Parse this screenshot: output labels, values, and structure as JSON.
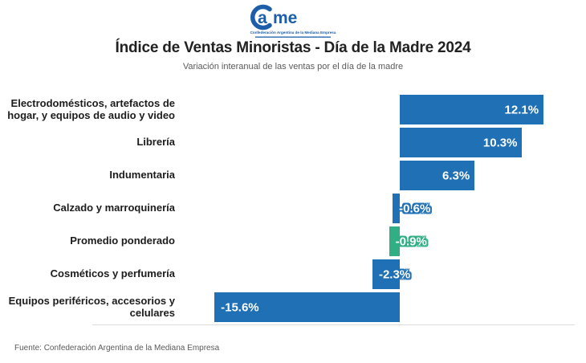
{
  "logo": {
    "brand_a": "a",
    "brand_rest": "me",
    "tagline": "Confederación Argentina de la Mediana Empresa"
  },
  "header": {
    "title": "Índice de Ventas Minoristas - Día de la Madre 2024",
    "subtitle": "Variación interanual de las ventas por el día de la madre"
  },
  "footer": {
    "source": "Fuente: Confederación Argentina de la Mediana Empresa"
  },
  "colors": {
    "bar_default": "#1f70b4",
    "bar_highlight": "#31ae83",
    "logo_blue": "#1c5ea9"
  },
  "chart_data": {
    "type": "bar",
    "orientation": "horizontal",
    "title": "Índice de Ventas Minoristas - Día de la Madre 2024",
    "subtitle": "Variación interanual de las ventas por el día de la madre",
    "xlabel": "",
    "ylabel": "",
    "xlim": [
      -17,
      13
    ],
    "grid": false,
    "legend": false,
    "categories": [
      "Electrodomésticos, artefactos de hogar, y equipos de audio y video",
      "Librería",
      "Indumentaria",
      "Calzado y marroquinería",
      "Promedio ponderado",
      "Cosméticos y perfumería",
      "Equipos periféricos, accesorios y celulares"
    ],
    "values": [
      12.1,
      10.3,
      6.3,
      -0.6,
      -0.9,
      -2.3,
      -15.6
    ],
    "labels": [
      "12.1%",
      "10.3%",
      "6.3%",
      "-0.6%",
      "-0.9%",
      "-2.3%",
      "-15.6%"
    ],
    "highlight_index": 4,
    "highlight_category": "Promedio ponderado"
  }
}
